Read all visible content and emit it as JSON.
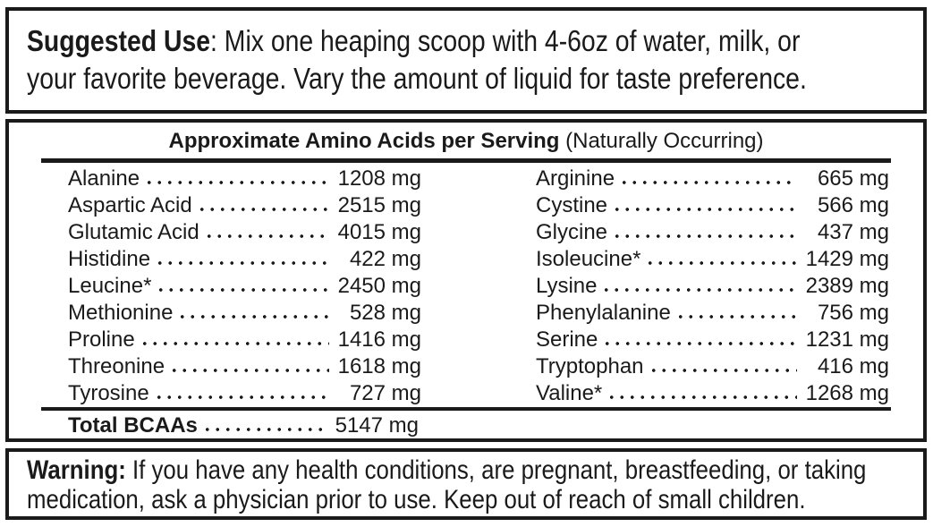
{
  "suggested_use": {
    "label": "Suggested Use",
    "line1_rest": ": Mix one heaping scoop with 4-6oz of water, milk, or",
    "line2": "your favorite beverage. Vary the amount of liquid for taste preference."
  },
  "amino_table": {
    "title_bold": "Approximate Amino Acids per Serving",
    "title_note": " (Naturally Occurring)",
    "left_rows": [
      {
        "name": "Alanine",
        "amount": "1208 mg"
      },
      {
        "name": "Aspartic Acid",
        "amount": "2515 mg"
      },
      {
        "name": "Glutamic Acid",
        "amount": "4015 mg"
      },
      {
        "name": "Histidine",
        "amount": "422 mg"
      },
      {
        "name": "Leucine*",
        "amount": "2450 mg"
      },
      {
        "name": "Methionine",
        "amount": "528 mg"
      },
      {
        "name": "Proline",
        "amount": "1416 mg"
      },
      {
        "name": "Threonine",
        "amount": "1618 mg"
      },
      {
        "name": "Tyrosine",
        "amount": "727 mg"
      }
    ],
    "right_rows": [
      {
        "name": "Arginine",
        "amount": "665 mg"
      },
      {
        "name": "Cystine",
        "amount": "566 mg"
      },
      {
        "name": "Glycine",
        "amount": "437 mg"
      },
      {
        "name": "Isoleucine*",
        "amount": "1429 mg"
      },
      {
        "name": "Lysine",
        "amount": "2389 mg"
      },
      {
        "name": "Phenylalanine",
        "amount": "756 mg"
      },
      {
        "name": "Serine",
        "amount": "1231 mg"
      },
      {
        "name": "Tryptophan",
        "amount": "416 mg"
      },
      {
        "name": "Valine*",
        "amount": "1268 mg"
      }
    ],
    "total": {
      "name": "Total BCAAs",
      "amount": "5147 mg"
    }
  },
  "warning": {
    "label": "Warning:",
    "line1_rest": " If you have any health conditions, are pregnant, breastfeeding, or taking",
    "line2": "medication, ask a physician prior to use. Keep out of reach of small children."
  },
  "colors": {
    "ink": "#1a1a1a",
    "background": "#ffffff"
  }
}
